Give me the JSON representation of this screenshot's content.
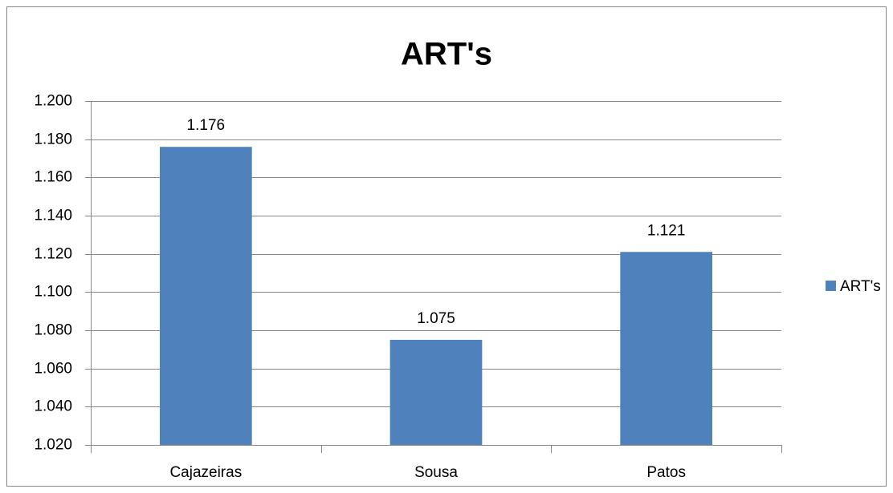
{
  "chart_data": {
    "type": "bar",
    "title": "ART's",
    "categories": [
      "Cajazeiras",
      "Sousa",
      "Patos"
    ],
    "series": [
      {
        "name": "ART's",
        "color": "#4f81bd",
        "values": [
          1176,
          1075,
          1121
        ],
        "value_labels": [
          "1.176",
          "1.075",
          "1.121"
        ]
      }
    ],
    "ylim": [
      1020,
      1200
    ],
    "yticks": [
      {
        "value": 1020,
        "label": "1.020"
      },
      {
        "value": 1040,
        "label": "1.040"
      },
      {
        "value": 1060,
        "label": "1.060"
      },
      {
        "value": 1080,
        "label": "1.080"
      },
      {
        "value": 1100,
        "label": "1.100"
      },
      {
        "value": 1120,
        "label": "1.120"
      },
      {
        "value": 1140,
        "label": "1.140"
      },
      {
        "value": 1160,
        "label": "1.160"
      },
      {
        "value": 1180,
        "label": "1.180"
      },
      {
        "value": 1200,
        "label": "1.200"
      }
    ],
    "grid": true,
    "legend": "right"
  }
}
